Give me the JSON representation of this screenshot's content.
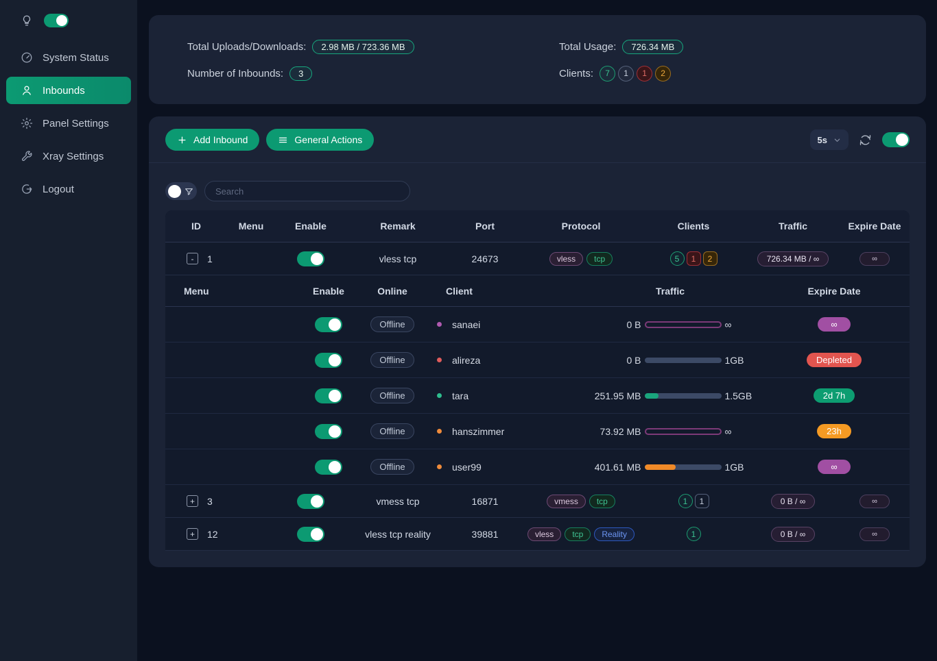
{
  "colors": {
    "accent_green": "#0c9a72",
    "badge_purple": "#a14fa3",
    "badge_red": "#e2554f",
    "badge_green": "#0d9d71",
    "badge_orange": "#f59a23",
    "bar_track": "#3c4a66",
    "bar_green": "#1aa57d",
    "bar_orange": "#f08a28",
    "bar_purple": "#7c3a78",
    "reality_blue": "#6c95f2"
  },
  "sidebar": {
    "items": [
      {
        "label": "System Status",
        "icon": "gauge",
        "active": false
      },
      {
        "label": "Inbounds",
        "icon": "user",
        "active": true
      },
      {
        "label": "Panel Settings",
        "icon": "gear",
        "active": false
      },
      {
        "label": "Xray Settings",
        "icon": "wrench",
        "active": false
      },
      {
        "label": "Logout",
        "icon": "logout",
        "active": false
      }
    ]
  },
  "stats": {
    "total_uploads_downloads_label": "Total Uploads/Downloads:",
    "total_uploads_downloads_value": "2.98 MB / 723.36 MB",
    "number_of_inbounds_label": "Number of Inbounds:",
    "number_of_inbounds_value": "3",
    "total_usage_label": "Total Usage:",
    "total_usage_value": "726.34 MB",
    "clients_label": "Clients:",
    "clients_badges": [
      {
        "value": "7",
        "color": "green"
      },
      {
        "value": "1",
        "color": "gray"
      },
      {
        "value": "1",
        "color": "red"
      },
      {
        "value": "2",
        "color": "orange"
      }
    ]
  },
  "toolbar": {
    "add_inbound": "Add Inbound",
    "general_actions": "General Actions",
    "interval": "5s"
  },
  "search": {
    "placeholder": "Search"
  },
  "inbound_table": {
    "headers": {
      "id": "ID",
      "menu": "Menu",
      "enable": "Enable",
      "remark": "Remark",
      "port": "Port",
      "protocol": "Protocol",
      "clients": "Clients",
      "traffic": "Traffic",
      "expire": "Expire Date"
    },
    "rows": [
      {
        "id": "1",
        "expanded": true,
        "expand_symbol": "-",
        "enabled": true,
        "remark": "vless tcp",
        "port": "24673",
        "protocols": [
          {
            "label": "vless",
            "color": "purple"
          },
          {
            "label": "tcp",
            "color": "green"
          }
        ],
        "client_badges": [
          {
            "value": "5",
            "color": "green",
            "shape": "circle"
          },
          {
            "value": "1",
            "color": "red",
            "shape": "rect"
          },
          {
            "value": "2",
            "color": "orange",
            "shape": "rect"
          }
        ],
        "traffic": "726.34 MB / ∞",
        "expire": "∞"
      },
      {
        "id": "3",
        "expanded": false,
        "expand_symbol": "+",
        "enabled": true,
        "remark": "vmess tcp",
        "port": "16871",
        "protocols": [
          {
            "label": "vmess",
            "color": "purple"
          },
          {
            "label": "tcp",
            "color": "green"
          }
        ],
        "client_badges": [
          {
            "value": "1",
            "color": "green",
            "shape": "circle"
          },
          {
            "value": "1",
            "color": "gray",
            "shape": "rect"
          }
        ],
        "traffic": "0 B / ∞",
        "expire": "∞"
      },
      {
        "id": "12",
        "expanded": false,
        "expand_symbol": "+",
        "enabled": true,
        "remark": "vless tcp reality",
        "port": "39881",
        "protocols": [
          {
            "label": "vless",
            "color": "purple"
          },
          {
            "label": "tcp",
            "color": "green"
          },
          {
            "label": "Reality",
            "color": "blue"
          }
        ],
        "client_badges": [
          {
            "value": "1",
            "color": "green",
            "shape": "circle"
          }
        ],
        "traffic": "0 B / ∞",
        "expire": "∞"
      }
    ]
  },
  "client_table": {
    "headers": {
      "menu": "Menu",
      "enable": "Enable",
      "online": "Online",
      "client": "Client",
      "traffic": "Traffic",
      "expire": "Expire Date"
    },
    "rows": [
      {
        "name": "sanaei",
        "status": "Offline",
        "enabled": true,
        "dot": "#b05ab0",
        "used": "0 B",
        "limit": "∞",
        "bar": {
          "style": "outline",
          "color": "#7c3a78",
          "pct": 100
        },
        "expire": {
          "label": "∞",
          "color": "purple"
        }
      },
      {
        "name": "alireza",
        "status": "Offline",
        "enabled": true,
        "dot": "#e05c5c",
        "used": "0 B",
        "limit": "1GB",
        "bar": {
          "style": "fill",
          "color": "#1aa57d",
          "pct": 0
        },
        "expire": {
          "label": "Depleted",
          "color": "red"
        }
      },
      {
        "name": "tara",
        "status": "Offline",
        "enabled": true,
        "dot": "#2ebd8e",
        "used": "251.95 MB",
        "limit": "1.5GB",
        "bar": {
          "style": "fill",
          "color": "#1aa57d",
          "pct": 17
        },
        "expire": {
          "label": "2d 7h",
          "color": "green"
        }
      },
      {
        "name": "hanszimmer",
        "status": "Offline",
        "enabled": true,
        "dot": "#ef8b3b",
        "used": "73.92 MB",
        "limit": "∞",
        "bar": {
          "style": "outline",
          "color": "#7c3a78",
          "pct": 100
        },
        "expire": {
          "label": "23h",
          "color": "orange"
        }
      },
      {
        "name": "user99",
        "status": "Offline",
        "enabled": true,
        "dot": "#ef8b3b",
        "used": "401.61 MB",
        "limit": "1GB",
        "bar": {
          "style": "fill",
          "color": "#f08a28",
          "pct": 40
        },
        "expire": {
          "label": "∞",
          "color": "purple"
        }
      }
    ]
  }
}
